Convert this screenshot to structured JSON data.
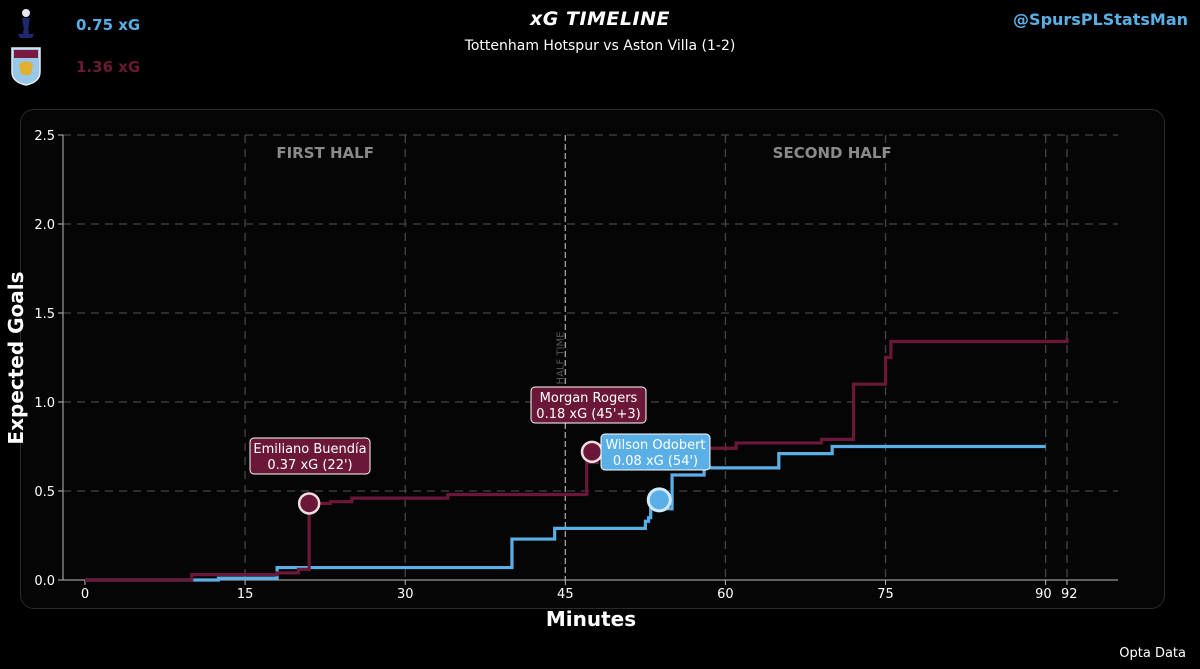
{
  "header": {
    "title": "xG TIMELINE",
    "subtitle": "Tottenham Hotspur vs Aston Villa (1-2)",
    "handle": "@SpursPLStatsMan",
    "home_xg": "0.75 xG",
    "away_xg": "1.36 xG",
    "home_logo_icon": "tottenham-crest-icon",
    "away_logo_icon": "aston-villa-crest-icon"
  },
  "footer": {
    "source": "Opta Data"
  },
  "colors": {
    "home": "#5aafe6",
    "away": "#6b1838",
    "background": "#000000",
    "grid": "#444444",
    "half_label": "#8a8a8a"
  },
  "chart_data": {
    "type": "line",
    "title": "",
    "xlabel": "Minutes",
    "ylabel": "Expected Goals",
    "xlim": [
      -2,
      97
    ],
    "ylim": [
      0,
      2.5
    ],
    "xticks": [
      0,
      15,
      30,
      45,
      60,
      75,
      90,
      92
    ],
    "yticks": [
      0.0,
      0.5,
      1.0,
      1.5,
      2.0,
      2.5
    ],
    "ytick_labels": [
      "0.0",
      "0.5",
      "1.0",
      "1.5",
      "2.0",
      "2.5"
    ],
    "grid": true,
    "half_labels": [
      "FIRST HALF",
      "SECOND HALF"
    ],
    "halftime_label": "HALF TIME",
    "vlines_dashed": [
      15,
      30,
      45,
      60,
      75,
      90,
      92
    ],
    "series": [
      {
        "name": "Tottenham Hotspur",
        "color": "#5aafe6",
        "step_x": [
          0,
          10,
          12.5,
          18,
          40,
          44,
          52.5,
          52.8,
          53,
          55,
          58,
          65,
          70,
          90
        ],
        "step_y": [
          0,
          0,
          0.01,
          0.07,
          0.23,
          0.29,
          0.33,
          0.35,
          0.4,
          0.59,
          0.63,
          0.71,
          0.75,
          0.75
        ]
      },
      {
        "name": "Aston Villa",
        "color": "#6b1838",
        "step_x": [
          0,
          10,
          18,
          20,
          21,
          23,
          25,
          34,
          47,
          48,
          58,
          61,
          69,
          72,
          75,
          75.5,
          92
        ],
        "step_y": [
          0,
          0.03,
          0.04,
          0.06,
          0.43,
          0.44,
          0.46,
          0.48,
          0.66,
          0.72,
          0.74,
          0.77,
          0.79,
          1.1,
          1.25,
          1.34,
          1.36
        ]
      }
    ],
    "goals": [
      {
        "team": "Aston Villa",
        "player": "Emiliano Buendía",
        "label": "0.37 xG (22')",
        "x": 21,
        "y": 0.43
      },
      {
        "team": "Aston Villa",
        "player": "Morgan Rogers",
        "label": "0.18 xG (45'+3)",
        "x": 47.5,
        "y": 0.72
      },
      {
        "team": "Tottenham Hotspur",
        "player": "Wilson Odobert",
        "label": "0.08 xG (54')",
        "x": 53.8,
        "y": 0.45
      }
    ]
  }
}
